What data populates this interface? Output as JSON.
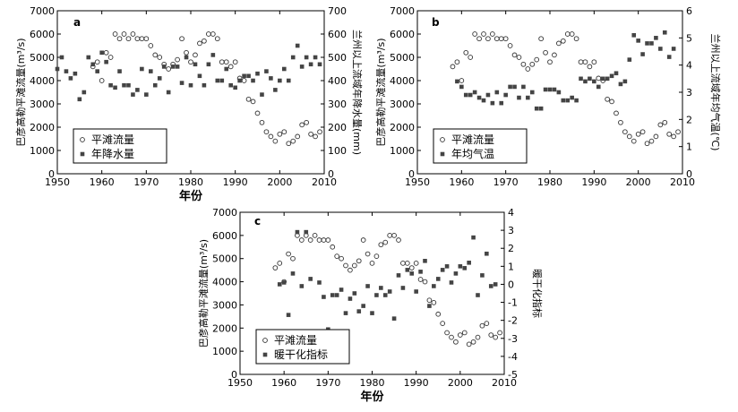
{
  "chart_data": [
    {
      "panel": "a",
      "type": "scatter",
      "x_range": [
        1950,
        2010
      ],
      "x_ticks": [
        1950,
        1960,
        1970,
        1980,
        1990,
        2000,
        2010
      ],
      "xlabel": "年份",
      "ylabel_left": "巴彦高勒平滩流量(m³/s)",
      "ylim_left": [
        0,
        7000
      ],
      "yticks_left": [
        0,
        1000,
        2000,
        3000,
        4000,
        5000,
        6000,
        7000
      ],
      "ylabel_right": "兰州以上流域年降水量(mm)",
      "ylim_right": [
        0,
        700
      ],
      "yticks_right": [
        0,
        100,
        200,
        300,
        400,
        500,
        600,
        700
      ],
      "legend_position": "bottom-left",
      "series": [
        {
          "name": "平滩流量",
          "axis": "left",
          "marker": "open-circle",
          "x": [
            1958,
            1959,
            1960,
            1961,
            1962,
            1963,
            1964,
            1965,
            1966,
            1967,
            1968,
            1969,
            1970,
            1971,
            1972,
            1973,
            1974,
            1975,
            1976,
            1977,
            1978,
            1979,
            1980,
            1981,
            1982,
            1983,
            1984,
            1985,
            1986,
            1987,
            1988,
            1989,
            1990,
            1991,
            1992,
            1993,
            1994,
            1995,
            1996,
            1997,
            1998,
            1999,
            2000,
            2001,
            2002,
            2003,
            2004,
            2005,
            2006,
            2007,
            2008,
            2009
          ],
          "y": [
            4600,
            4800,
            4000,
            5200,
            5000,
            6000,
            5800,
            6000,
            5800,
            6000,
            5800,
            5800,
            5800,
            5500,
            5100,
            5000,
            4700,
            4500,
            4700,
            4900,
            5800,
            5200,
            4800,
            5100,
            5600,
            5700,
            6000,
            6000,
            5800,
            4800,
            4800,
            4600,
            4800,
            4100,
            4000,
            3200,
            3100,
            2600,
            2200,
            1800,
            1600,
            1400,
            1700,
            1800,
            1300,
            1400,
            1600,
            2100,
            2200,
            1700,
            1600,
            1800
          ]
        },
        {
          "name": "年降水量",
          "axis": "right",
          "marker": "filled-square",
          "x": [
            1950,
            1951,
            1952,
            1953,
            1954,
            1955,
            1956,
            1957,
            1958,
            1959,
            1960,
            1961,
            1962,
            1963,
            1964,
            1965,
            1966,
            1967,
            1968,
            1969,
            1970,
            1971,
            1972,
            1973,
            1974,
            1975,
            1976,
            1977,
            1978,
            1979,
            1980,
            1981,
            1982,
            1983,
            1984,
            1985,
            1986,
            1987,
            1988,
            1989,
            1990,
            1991,
            1992,
            1993,
            1994,
            1995,
            1996,
            1997,
            1998,
            1999,
            2000,
            2001,
            2002,
            2003,
            2004,
            2005,
            2006,
            2007,
            2008,
            2009
          ],
          "y": [
            450,
            500,
            440,
            410,
            430,
            320,
            350,
            500,
            470,
            440,
            520,
            480,
            380,
            370,
            440,
            380,
            380,
            340,
            360,
            450,
            340,
            440,
            380,
            410,
            460,
            350,
            460,
            460,
            390,
            500,
            380,
            470,
            420,
            380,
            470,
            510,
            400,
            400,
            450,
            380,
            370,
            400,
            420,
            420,
            400,
            430,
            340,
            440,
            410,
            360,
            400,
            450,
            400,
            500,
            550,
            460,
            500,
            470,
            500,
            470
          ]
        }
      ]
    },
    {
      "panel": "b",
      "type": "scatter",
      "x_range": [
        1950,
        2010
      ],
      "x_ticks": [
        1950,
        1960,
        1970,
        1980,
        1990,
        2000,
        2010
      ],
      "xlabel": "",
      "ylabel_left": "巴彦高勒平滩流量(m³/s)",
      "ylim_left": [
        0,
        7000
      ],
      "yticks_left": [
        0,
        1000,
        2000,
        3000,
        4000,
        5000,
        6000,
        7000
      ],
      "ylabel_right": "兰州以上流域年均气温(℃)",
      "ylim_right": [
        0,
        6
      ],
      "yticks_right": [
        0,
        1,
        2,
        3,
        4,
        5,
        6
      ],
      "legend_position": "bottom-left",
      "series": [
        {
          "name": "平滩流量",
          "axis": "left",
          "marker": "open-circle",
          "x": [
            1958,
            1959,
            1960,
            1961,
            1962,
            1963,
            1964,
            1965,
            1966,
            1967,
            1968,
            1969,
            1970,
            1971,
            1972,
            1973,
            1974,
            1975,
            1976,
            1977,
            1978,
            1979,
            1980,
            1981,
            1982,
            1983,
            1984,
            1985,
            1986,
            1987,
            1988,
            1989,
            1990,
            1991,
            1992,
            1993,
            1994,
            1995,
            1996,
            1997,
            1998,
            1999,
            2000,
            2001,
            2002,
            2003,
            2004,
            2005,
            2006,
            2007,
            2008,
            2009
          ],
          "y": [
            4600,
            4800,
            4000,
            5200,
            5000,
            6000,
            5800,
            6000,
            5800,
            6000,
            5800,
            5800,
            5800,
            5500,
            5100,
            5000,
            4700,
            4500,
            4700,
            4900,
            5800,
            5200,
            4800,
            5100,
            5600,
            5700,
            6000,
            6000,
            5800,
            4800,
            4800,
            4600,
            4800,
            4100,
            4000,
            3200,
            3100,
            2600,
            2200,
            1800,
            1600,
            1400,
            1700,
            1800,
            1300,
            1400,
            1600,
            2100,
            2200,
            1700,
            1600,
            1800
          ]
        },
        {
          "name": "年均气温",
          "axis": "right",
          "marker": "filled-square",
          "x": [
            1959,
            1960,
            1961,
            1962,
            1963,
            1964,
            1965,
            1966,
            1967,
            1968,
            1969,
            1970,
            1971,
            1972,
            1973,
            1974,
            1975,
            1976,
            1977,
            1978,
            1979,
            1980,
            1981,
            1982,
            1983,
            1984,
            1985,
            1986,
            1987,
            1988,
            1989,
            1990,
            1991,
            1992,
            1993,
            1994,
            1995,
            1996,
            1997,
            1998,
            1999,
            2000,
            2001,
            2002,
            2003,
            2004,
            2005,
            2006,
            2007,
            2008
          ],
          "y": [
            3.4,
            3.2,
            2.9,
            2.9,
            3.0,
            2.8,
            2.7,
            2.9,
            2.6,
            3.0,
            2.6,
            2.9,
            3.2,
            3.2,
            2.8,
            3.2,
            2.8,
            3.0,
            2.4,
            2.4,
            3.1,
            3.1,
            3.1,
            3.0,
            2.7,
            2.7,
            2.8,
            2.7,
            3.5,
            3.4,
            3.5,
            3.4,
            3.2,
            3.5,
            3.5,
            3.6,
            3.7,
            3.3,
            3.4,
            4.2,
            5.1,
            4.9,
            4.4,
            4.8,
            4.8,
            5.0,
            4.6,
            5.2,
            4.3,
            4.6
          ]
        }
      ]
    },
    {
      "panel": "c",
      "type": "scatter",
      "x_range": [
        1950,
        2010
      ],
      "x_ticks": [
        1950,
        1960,
        1970,
        1980,
        1990,
        2000,
        2010
      ],
      "xlabel": "年份",
      "ylabel_left": "巴彦高勒平滩流量(m³/s)",
      "ylim_left": [
        0,
        7000
      ],
      "yticks_left": [
        0,
        1000,
        2000,
        3000,
        4000,
        5000,
        6000,
        7000
      ],
      "ylabel_right": "暖干化指标",
      "ylim_right": [
        -5,
        4
      ],
      "yticks_right": [
        -5,
        -4,
        -3,
        -2,
        -1,
        0,
        1,
        2,
        3,
        4
      ],
      "legend_position": "bottom-left",
      "series": [
        {
          "name": "平滩流量",
          "axis": "left",
          "marker": "open-circle",
          "x": [
            1958,
            1959,
            1960,
            1961,
            1962,
            1963,
            1964,
            1965,
            1966,
            1967,
            1968,
            1969,
            1970,
            1971,
            1972,
            1973,
            1974,
            1975,
            1976,
            1977,
            1978,
            1979,
            1980,
            1981,
            1982,
            1983,
            1984,
            1985,
            1986,
            1987,
            1988,
            1989,
            1990,
            1991,
            1992,
            1993,
            1994,
            1995,
            1996,
            1997,
            1998,
            1999,
            2000,
            2001,
            2002,
            2003,
            2004,
            2005,
            2006,
            2007,
            2008,
            2009
          ],
          "y": [
            4600,
            4800,
            4000,
            5200,
            5000,
            6000,
            5800,
            6000,
            5800,
            6000,
            5800,
            5800,
            5800,
            5500,
            5100,
            5000,
            4700,
            4500,
            4700,
            4900,
            5800,
            5200,
            4800,
            5100,
            5600,
            5700,
            6000,
            6000,
            5800,
            4800,
            4800,
            4600,
            4800,
            4100,
            4000,
            3200,
            3100,
            2600,
            2200,
            1800,
            1600,
            1400,
            1700,
            1800,
            1300,
            1400,
            1600,
            2100,
            2200,
            1700,
            1600,
            1800
          ]
        },
        {
          "name": "暖干化指标",
          "axis": "right",
          "marker": "filled-square",
          "x": [
            1959,
            1960,
            1961,
            1962,
            1963,
            1964,
            1965,
            1966,
            1967,
            1968,
            1969,
            1970,
            1971,
            1972,
            1973,
            1974,
            1975,
            1976,
            1977,
            1978,
            1979,
            1980,
            1981,
            1982,
            1983,
            1984,
            1985,
            1986,
            1987,
            1988,
            1989,
            1990,
            1991,
            1992,
            1993,
            1994,
            1995,
            1996,
            1997,
            1998,
            1999,
            2000,
            2001,
            2002,
            2003,
            2004,
            2005,
            2006,
            2007,
            2008
          ],
          "y": [
            0.0,
            0.1,
            -1.7,
            0.6,
            2.9,
            -0.1,
            2.9,
            0.3,
            -4.2,
            0.1,
            -0.7,
            -2.5,
            -0.6,
            -0.6,
            -0.3,
            -1.6,
            -0.8,
            -0.5,
            -1.5,
            -1.2,
            -0.1,
            -1.6,
            -0.6,
            -0.2,
            -0.6,
            -0.4,
            -1.9,
            0.5,
            -0.2,
            0.8,
            0.6,
            -0.4,
            0.7,
            1.3,
            -1.2,
            -0.1,
            0.3,
            0.8,
            1.0,
            0.1,
            0.6,
            1.0,
            0.9,
            1.2,
            2.6,
            -0.6,
            0.5,
            1.7,
            -0.1,
            0.0
          ]
        }
      ]
    }
  ]
}
